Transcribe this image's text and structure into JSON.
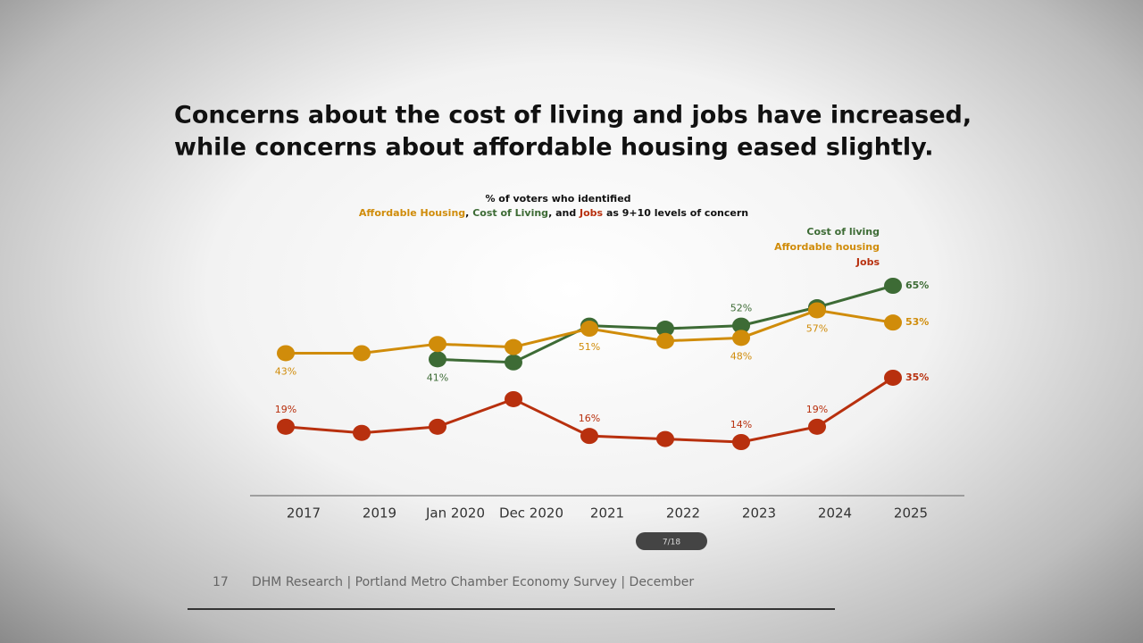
{
  "chart_data": {
    "type": "line",
    "title": [
      "Concerns about the cost of living and jobs have increased,",
      "while concerns about affordable housing eased slightly."
    ],
    "subtitle": [
      "% of voters who identified",
      [
        {
          "text": "Affordable Housing",
          "color": "#d08c0a"
        },
        {
          "text": ", ",
          "color": "#111111"
        },
        {
          "text": "Cost of Living",
          "color": "#3d6b35"
        },
        {
          "text": ", and ",
          "color": "#111111"
        },
        {
          "text": "Jobs",
          "color": "#b8300e"
        },
        {
          "text": " as 9+10 levels of concern",
          "color": "#111111"
        }
      ]
    ],
    "categories": [
      "2017",
      "2019",
      "Jan 2020",
      "Dec 2020",
      "2021",
      "2022",
      "2023",
      "2024",
      "2025"
    ],
    "series": [
      {
        "name": "Cost of living",
        "color": "#3d6b35",
        "values": [
          null,
          null,
          41,
          40,
          52,
          51,
          52,
          58,
          65
        ],
        "value_labels": [
          null,
          null,
          "41%",
          null,
          null,
          null,
          "52%",
          null,
          "65%"
        ]
      },
      {
        "name": "Affordable housing",
        "color": "#d08c0a",
        "values": [
          43,
          43,
          46,
          45,
          51,
          47,
          48,
          57,
          53
        ],
        "value_labels": [
          "43%",
          null,
          null,
          null,
          "51%",
          null,
          "48%",
          "57%",
          "53%"
        ]
      },
      {
        "name": "Jobs",
        "color": "#b8300e",
        "values": [
          19,
          17,
          19,
          28,
          16,
          15,
          14,
          19,
          35
        ],
        "value_labels": [
          "19%",
          null,
          null,
          null,
          "16%",
          null,
          "14%",
          "19%",
          "35%"
        ]
      }
    ]
  },
  "footer": {
    "page": "17",
    "text": "DHM Research | Portland Metro Chamber Economy Survey | December",
    "nav": "7/18"
  }
}
